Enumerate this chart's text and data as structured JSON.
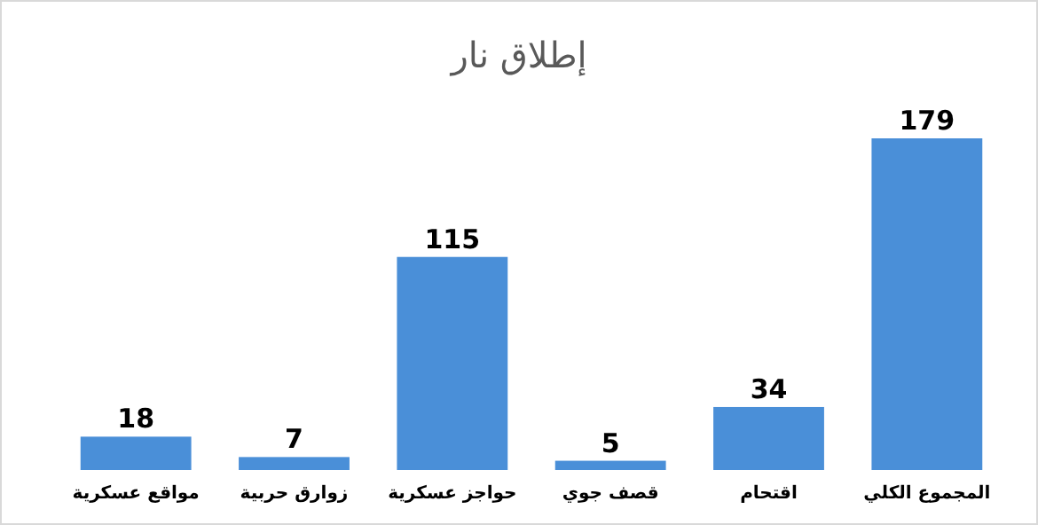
{
  "chart_data": {
    "type": "bar",
    "title": "إطلاق نار",
    "categories": [
      "مواقع عسكرية",
      "زوارق حربية",
      "حواجز عسكرية",
      "قصف جوي",
      "اقتحام",
      "المجموع الكلي"
    ],
    "values": [
      18,
      7,
      115,
      5,
      34,
      179
    ],
    "color": "#4a8fd8",
    "data_labels": true
  }
}
